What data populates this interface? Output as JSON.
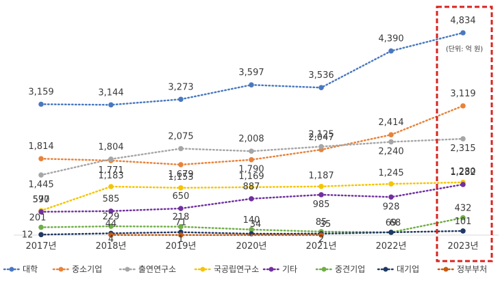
{
  "chart_data": {
    "type": "line",
    "categories": [
      "2017년",
      "2018년",
      "2019년",
      "2020년",
      "2021년",
      "2022년",
      "2023년"
    ],
    "unit_note": "(단위: 억 원)",
    "highlight_category": "2023년",
    "series": [
      {
        "name": "대학",
        "color": "#4a78c0",
        "values": [
          3159,
          3144,
          3273,
          3597,
          3536,
          4390,
          4834
        ]
      },
      {
        "name": "중소기업",
        "color": "#e8823a",
        "values": [
          1814,
          1771,
          1679,
          1790,
          2047,
          2414,
          3119
        ]
      },
      {
        "name": "출연연구소",
        "color": "#a6a6a6",
        "values": [
          1445,
          1804,
          2075,
          2008,
          2125,
          2240,
          2315
        ]
      },
      {
        "name": "국공립연구소",
        "color": "#f5c400",
        "values": [
          597,
          1183,
          1153,
          1169,
          1187,
          1245,
          1280
        ]
      },
      {
        "name": "기타",
        "color": "#7030a0",
        "values": [
          570,
          585,
          650,
          887,
          985,
          928,
          1232
        ]
      },
      {
        "name": "중견기업",
        "color": "#70ad47",
        "values": [
          201,
          229,
          218,
          140,
          85,
          69,
          432
        ]
      },
      {
        "name": "대기업",
        "color": "#1f3864",
        "values": [
          12,
          44,
          71,
          34,
          35,
          68,
          101
        ]
      },
      {
        "name": "정부부처",
        "color": "#c55a11",
        "values": [
          null,
          4,
          1,
          null,
          2,
          null,
          null
        ]
      }
    ]
  }
}
